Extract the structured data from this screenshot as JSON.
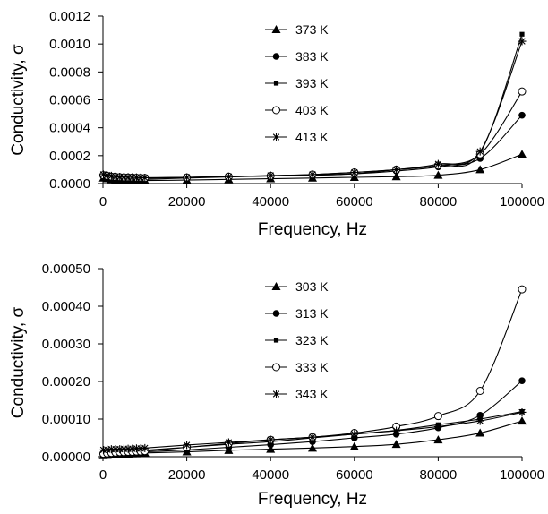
{
  "chart_data": [
    {
      "type": "line",
      "xlabel": "Frequency, Hz",
      "ylabel": "Conductivity, σ",
      "xlim": [
        0,
        100000
      ],
      "ylim": [
        0,
        0.0012
      ],
      "xticks": [
        "0",
        "20000",
        "40000",
        "60000",
        "80000",
        "100000"
      ],
      "yticks": [
        "0.0000",
        "0.0002",
        "0.0004",
        "0.0006",
        "0.0008",
        "0.0010",
        "0.0012"
      ],
      "grid": false,
      "legend_position": "top-center",
      "x": [
        100,
        1000,
        2000,
        3000,
        4000,
        5000,
        6000,
        7000,
        8000,
        9000,
        10000,
        20000,
        30000,
        40000,
        50000,
        60000,
        70000,
        80000,
        90000,
        100000
      ],
      "series": [
        {
          "name": "373 K",
          "marker": "triangle",
          "values": [
            4e-05,
            3.5e-05,
            3e-05,
            2.8e-05,
            2.6e-05,
            2.5e-05,
            2.4e-05,
            2.3e-05,
            2.3e-05,
            2.2e-05,
            2.2e-05,
            2.5e-05,
            3e-05,
            3.5e-05,
            4e-05,
            4.5e-05,
            5e-05,
            6e-05,
            0.0001,
            0.00021
          ]
        },
        {
          "name": "383 K",
          "marker": "circle-filled",
          "values": [
            5e-05,
            4.5e-05,
            4e-05,
            3.8e-05,
            3.6e-05,
            3.5e-05,
            3.4e-05,
            3.3e-05,
            3.2e-05,
            3.1e-05,
            3e-05,
            4e-05,
            4.8e-05,
            5.5e-05,
            6.2e-05,
            7e-05,
            9e-05,
            0.00012,
            0.00018,
            0.00049
          ]
        },
        {
          "name": "393 K",
          "marker": "square",
          "values": [
            7e-05,
            6e-05,
            5.5e-05,
            5e-05,
            4.8e-05,
            4.6e-05,
            4.5e-05,
            4.4e-05,
            4.3e-05,
            4.2e-05,
            4e-05,
            4.5e-05,
            5e-05,
            5.5e-05,
            6e-05,
            7e-05,
            0.0001,
            0.00013,
            0.00022,
            0.00107
          ]
        },
        {
          "name": "403 K",
          "marker": "circle-open",
          "values": [
            6e-05,
            5.5e-05,
            5e-05,
            4.8e-05,
            4.6e-05,
            4.5e-05,
            4.4e-05,
            4.3e-05,
            4.2e-05,
            4.1e-05,
            4e-05,
            4.4e-05,
            5e-05,
            5.5e-05,
            6.5e-05,
            8e-05,
            0.0001,
            0.00013,
            0.00021,
            0.00066
          ]
        },
        {
          "name": "413 K",
          "marker": "star",
          "values": [
            6.5e-05,
            6e-05,
            5.5e-05,
            5e-05,
            4.8e-05,
            4.7e-05,
            4.6e-05,
            4.5e-05,
            4.4e-05,
            4.3e-05,
            4.2e-05,
            4.5e-05,
            5e-05,
            5.8e-05,
            6.5e-05,
            8e-05,
            0.0001,
            0.00014,
            0.00023,
            0.00102
          ]
        }
      ]
    },
    {
      "type": "line",
      "xlabel": "Frequency, Hz",
      "ylabel": "Conductivity, σ",
      "xlim": [
        0,
        100000
      ],
      "ylim": [
        0,
        0.0005
      ],
      "xticks": [
        "0",
        "20000",
        "40000",
        "60000",
        "80000",
        "100000"
      ],
      "yticks": [
        "0.00000",
        "0.00010",
        "0.00020",
        "0.00030",
        "0.00040",
        "0.00050"
      ],
      "grid": false,
      "legend_position": "top-center",
      "x": [
        100,
        1000,
        2000,
        3000,
        4000,
        5000,
        6000,
        7000,
        8000,
        9000,
        10000,
        20000,
        30000,
        40000,
        50000,
        60000,
        70000,
        80000,
        90000,
        100000
      ],
      "series": [
        {
          "name": "303 K",
          "marker": "triangle",
          "values": [
            3e-06,
            4e-06,
            5e-06,
            6e-06,
            6e-06,
            7e-06,
            7e-06,
            8e-06,
            8e-06,
            9e-06,
            1e-05,
            1.3e-05,
            1.7e-05,
            2e-05,
            2.3e-05,
            2.7e-05,
            3.3e-05,
            4.5e-05,
            6.3e-05,
            9.5e-05
          ]
        },
        {
          "name": "313 K",
          "marker": "circle-filled",
          "values": [
            5e-06,
            6e-06,
            7e-06,
            8e-06,
            9e-06,
            9e-06,
            1e-05,
            1.1e-05,
            1.1e-05,
            1.2e-05,
            1.3e-05,
            1.8e-05,
            2.5e-05,
            3.2e-05,
            4e-05,
            5e-05,
            6e-05,
            7.7e-05,
            0.00011,
            0.000202
          ]
        },
        {
          "name": "323 K",
          "marker": "square",
          "values": [
            1.3e-05,
            1.3e-05,
            1.4e-05,
            1.4e-05,
            1.5e-05,
            1.5e-05,
            1.5e-05,
            1.6e-05,
            1.6e-05,
            1.6e-05,
            1.7e-05,
            2.5e-05,
            3.3e-05,
            4e-05,
            5e-05,
            6e-05,
            7e-05,
            8.5e-05,
            0.0001,
            0.00012
          ]
        },
        {
          "name": "333 K",
          "marker": "circle-open",
          "values": [
            8e-06,
            9e-06,
            1e-05,
            1.1e-05,
            1.2e-05,
            1.2e-05,
            1.3e-05,
            1.3e-05,
            1.4e-05,
            1.4e-05,
            1.5e-05,
            2.5e-05,
            3.5e-05,
            4.5e-05,
            5.2e-05,
            6.3e-05,
            8e-05,
            0.000108,
            0.000175,
            0.000445
          ]
        },
        {
          "name": "343 K",
          "marker": "star",
          "values": [
            1.8e-05,
            1.9e-05,
            2e-05,
            2e-05,
            2e-05,
            2.1e-05,
            2.1e-05,
            2.1e-05,
            2.2e-05,
            2.2e-05,
            2.3e-05,
            3.1e-05,
            3.8e-05,
            4.5e-05,
            5.2e-05,
            6e-05,
            6.9e-05,
            8e-05,
            9.5e-05,
            0.000118
          ]
        }
      ]
    }
  ]
}
